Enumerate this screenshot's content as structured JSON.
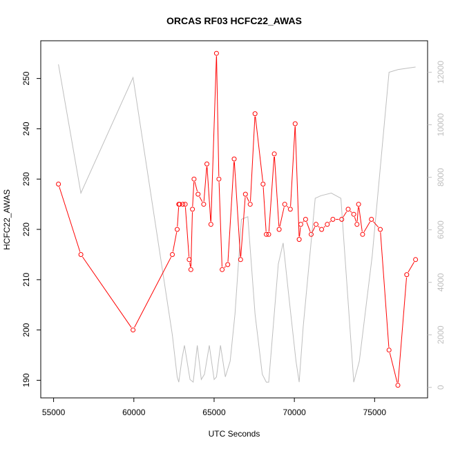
{
  "chart_data": {
    "type": "line",
    "title": "ORCAS RF03 HCFC22_AWAS",
    "xlabel": "UTC Seconds",
    "ylabel": "HCFC22_AWAS",
    "xlim": [
      54200,
      78300
    ],
    "ylim": [
      186.5,
      257.5
    ],
    "y2lim": [
      -400,
      13200
    ],
    "x_ticks": [
      55000,
      60000,
      65000,
      70000,
      75000
    ],
    "y_ticks": [
      190,
      200,
      210,
      220,
      230,
      240,
      250
    ],
    "y2_ticks": [
      0,
      2000,
      4000,
      6000,
      8000,
      10000,
      12000
    ],
    "legend": "none",
    "grid": false,
    "series": [
      {
        "color": "#ff0000",
        "axis": "left",
        "markers": "open-circle",
        "x": [
          55300,
          56700,
          59950,
          62400,
          62700,
          62800,
          62850,
          63050,
          63200,
          63450,
          63550,
          63650,
          63750,
          64000,
          64350,
          64550,
          64800,
          65150,
          65300,
          65500,
          65850,
          66250,
          66650,
          66950,
          67250,
          67550,
          68050,
          68250,
          68400,
          68750,
          69050,
          69400,
          69750,
          70050,
          70300,
          70400,
          70700,
          71050,
          71350,
          71700,
          72050,
          72400,
          72950,
          73350,
          73700,
          73900,
          74000,
          74250,
          74800,
          75350,
          75900,
          76450,
          77000,
          77550
        ],
        "y": [
          229,
          215,
          200,
          215,
          220,
          225,
          225,
          225,
          225,
          214,
          212,
          224,
          230,
          227,
          225,
          233,
          221,
          255,
          230,
          212,
          213,
          234,
          214,
          227,
          225,
          243,
          229,
          219,
          219,
          235,
          220,
          225,
          224,
          241,
          218,
          221,
          222,
          219,
          221,
          220,
          221,
          222,
          222,
          224,
          223,
          221,
          225,
          219,
          222,
          220,
          196,
          189,
          211,
          214
        ]
      },
      {
        "color": "#bebebe",
        "axis": "right",
        "markers": "none",
        "x": [
          55300,
          56700,
          59950,
          62400,
          62700,
          62800,
          63000,
          63150,
          63500,
          63700,
          63950,
          64200,
          64400,
          64700,
          65000,
          65150,
          65400,
          65700,
          66000,
          66300,
          66700,
          67100,
          67550,
          68000,
          68250,
          68400,
          69000,
          69300,
          69650,
          70100,
          70300,
          70550,
          71300,
          71650,
          72300,
          72900,
          73700,
          74050,
          74850,
          75900,
          76450,
          77550
        ],
        "y": [
          12300,
          7400,
          11800,
          2000,
          400,
          200,
          1100,
          1600,
          300,
          200,
          1600,
          300,
          500,
          1600,
          300,
          400,
          1600,
          400,
          1000,
          2800,
          6400,
          6500,
          2800,
          500,
          200,
          200,
          4700,
          5500,
          3500,
          1000,
          200,
          2300,
          7200,
          7300,
          7400,
          7200,
          200,
          1000,
          5000,
          12000,
          12100,
          12200
        ]
      }
    ]
  }
}
